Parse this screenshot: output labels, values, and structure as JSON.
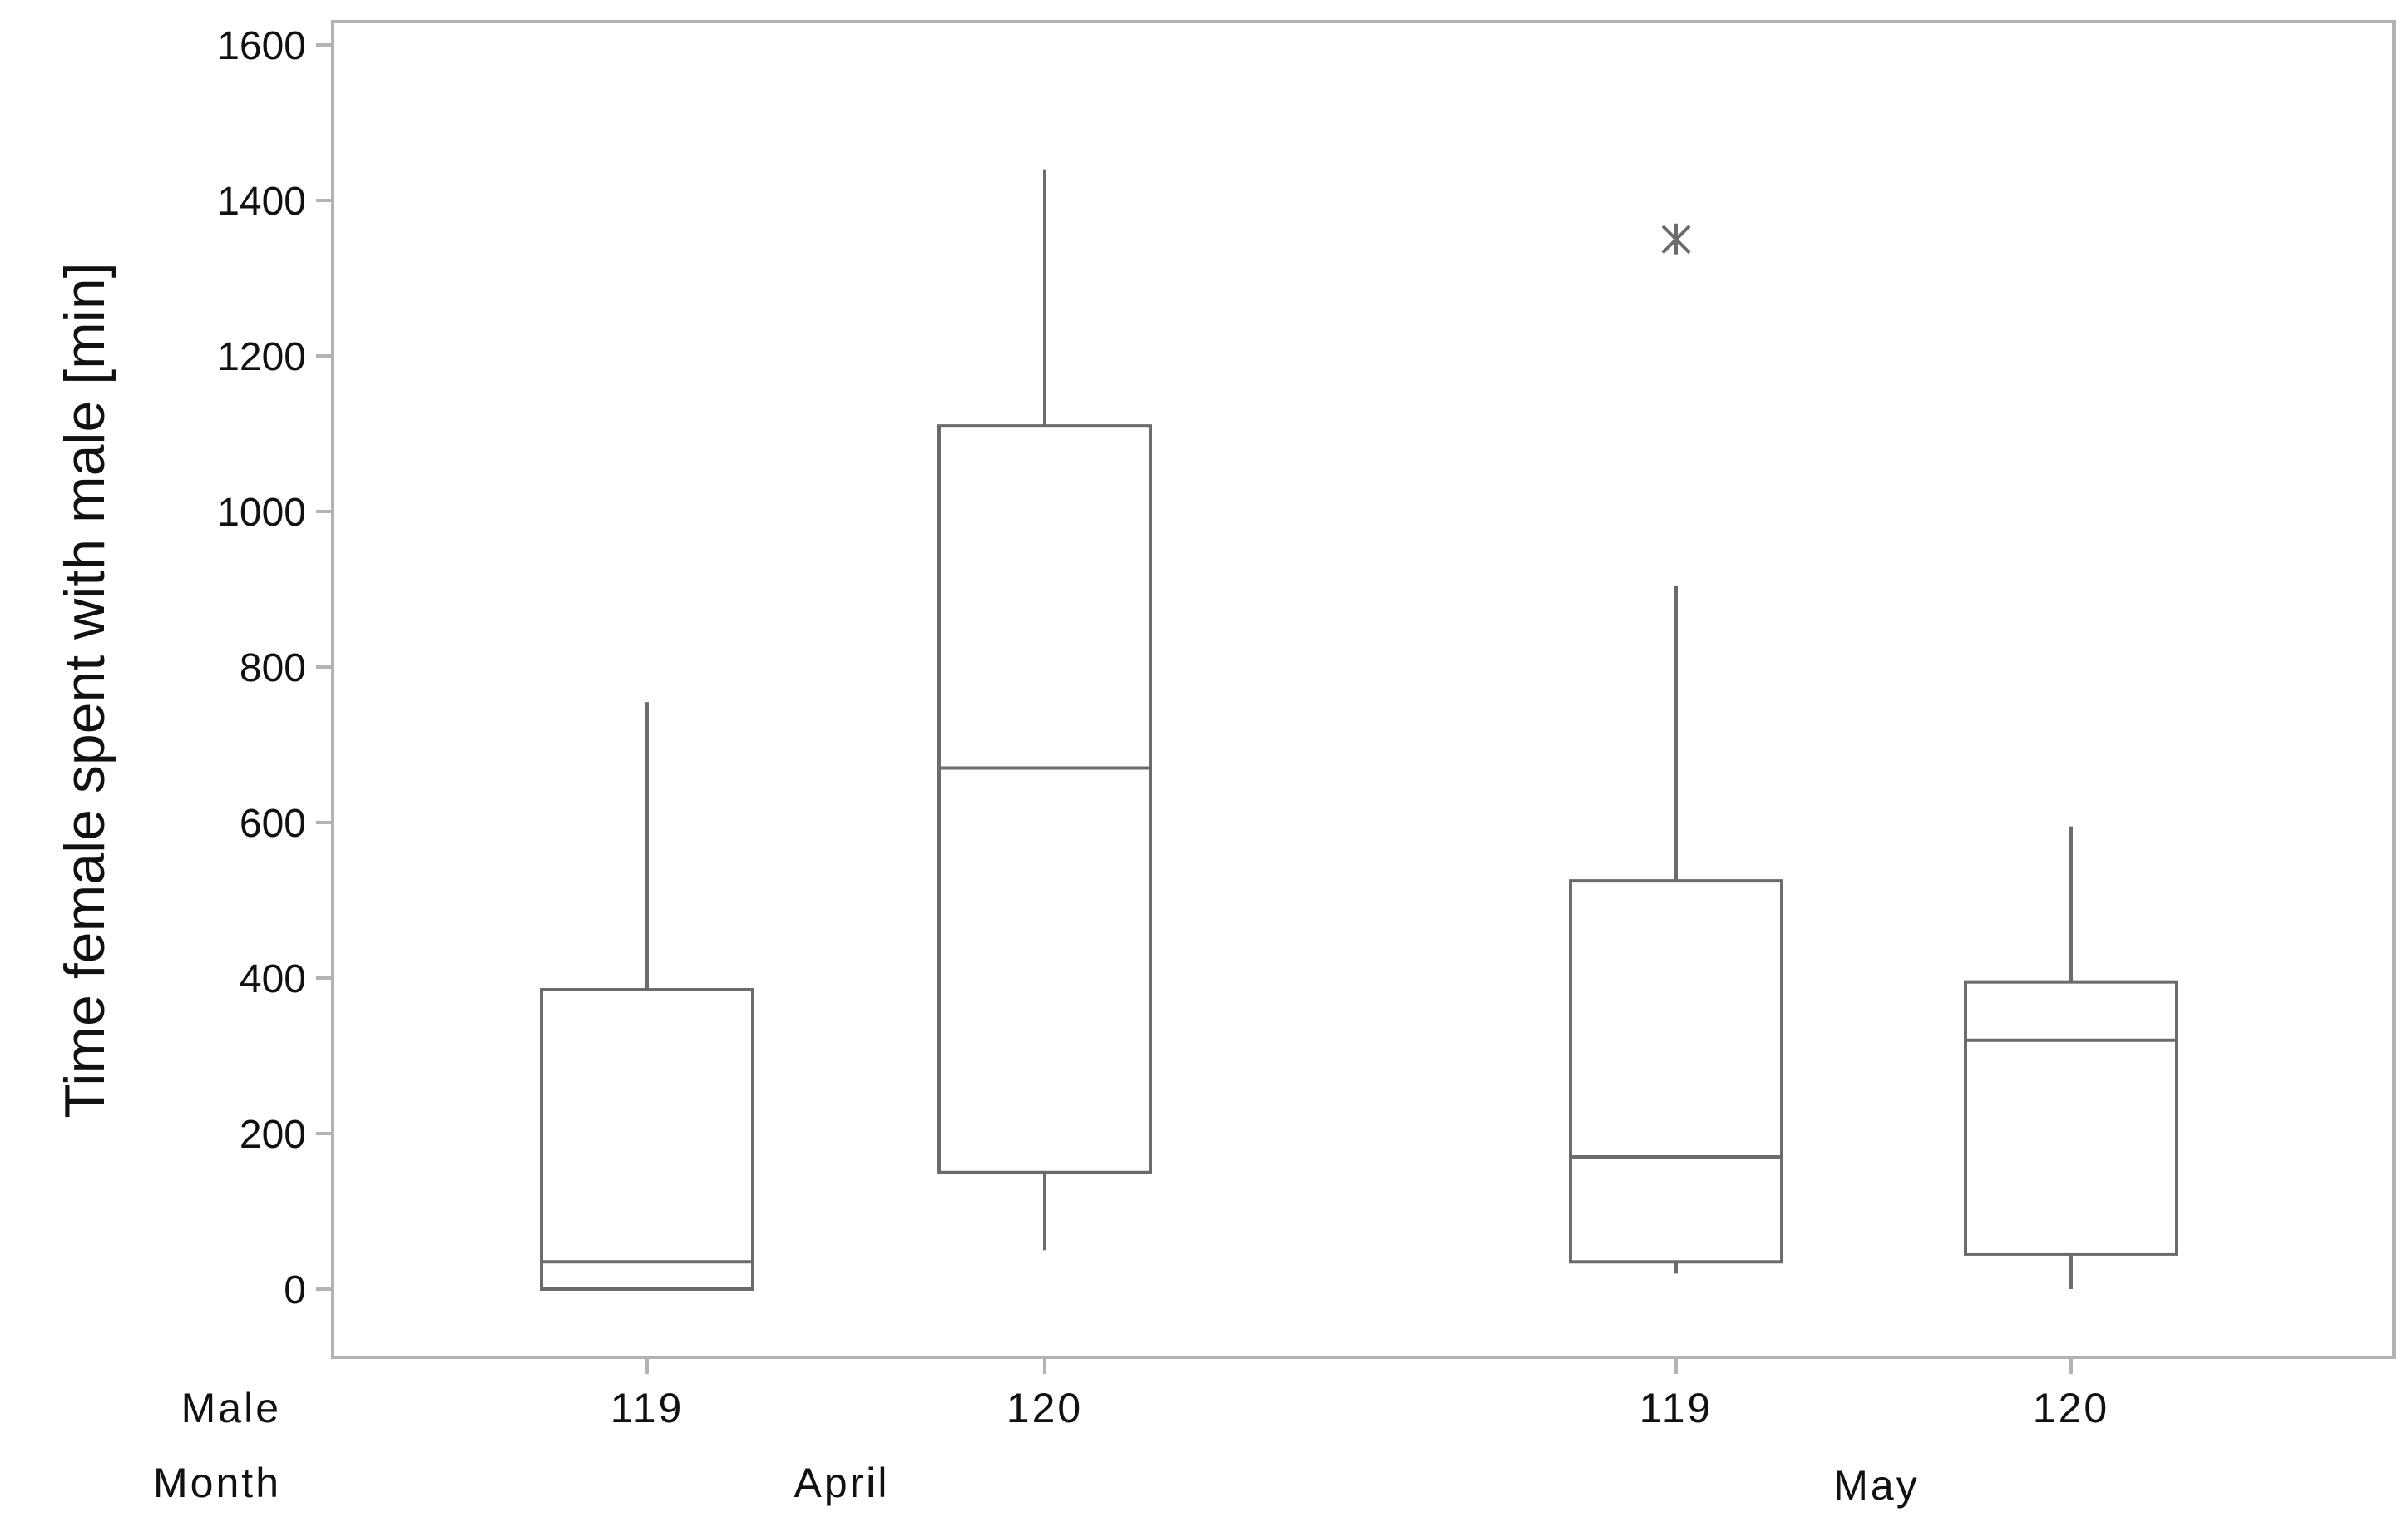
{
  "chart_data": {
    "type": "boxplot",
    "ylabel": "Time female spent with male [min]",
    "ylim": [
      -80,
      1620
    ],
    "yticks": [
      0,
      200,
      400,
      600,
      800,
      1000,
      1200,
      1400,
      1600
    ],
    "x_factor_labels": {
      "male": "Male",
      "month": "Month"
    },
    "groups": [
      {
        "month": "April",
        "male": "119",
        "whisker_low": 0,
        "q1": 0,
        "median": 35,
        "q3": 385,
        "whisker_high": 755,
        "outliers": []
      },
      {
        "month": "April",
        "male": "120",
        "whisker_low": 50,
        "q1": 150,
        "median": 670,
        "q3": 1110,
        "whisker_high": 1440,
        "outliers": []
      },
      {
        "month": "May",
        "male": "119",
        "whisker_low": 20,
        "q1": 35,
        "median": 170,
        "q3": 525,
        "whisker_high": 905,
        "outliers": [
          1350
        ]
      },
      {
        "month": "May",
        "male": "120",
        "whisker_low": 0,
        "q1": 45,
        "median": 320,
        "q3": 395,
        "whisker_high": 595,
        "outliers": []
      }
    ],
    "months": [
      "April",
      "May"
    ],
    "colors": {
      "frame": "#b3b3b3",
      "box": "#6b6b6b",
      "outlier": "#6b6b6b",
      "text": "#111111"
    }
  }
}
